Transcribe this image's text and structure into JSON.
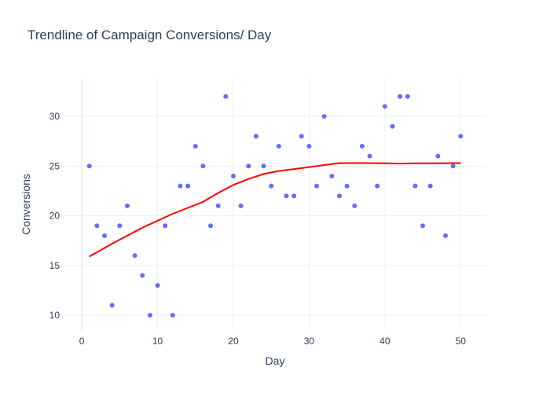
{
  "chart_data": {
    "type": "scatter",
    "title": "Trendline of Campaign Conversions/ Day",
    "xlabel": "Day",
    "ylabel": "Conversions",
    "xlim": [
      -2.5,
      53.5
    ],
    "ylim": [
      8.5,
      33.8
    ],
    "x_ticks": [
      0,
      10,
      20,
      30,
      40,
      50
    ],
    "y_ticks": [
      10,
      15,
      20,
      25,
      30
    ],
    "grid": true,
    "legend": "none",
    "colors": {
      "points": "#636efa",
      "trendline": "#ff0000",
      "grid": "#ebf0f8",
      "text": "#2a3f5f"
    },
    "series": [
      {
        "kind": "markers",
        "x": [
          1,
          2,
          3,
          4,
          5,
          6,
          7,
          8,
          9,
          10,
          11,
          12,
          13,
          14,
          15,
          16,
          17,
          18,
          19,
          20,
          21,
          22,
          23,
          24,
          25,
          26,
          27,
          28,
          29,
          30,
          31,
          32,
          33,
          34,
          35,
          36,
          37,
          38,
          39,
          40,
          41,
          42,
          43,
          44,
          45,
          46,
          47,
          48,
          49,
          50
        ],
        "y": [
          25,
          19,
          18,
          11,
          19,
          21,
          16,
          14,
          10,
          13,
          19,
          10,
          23,
          23,
          27,
          25,
          19,
          21,
          32,
          24,
          21,
          25,
          28,
          25,
          23,
          27,
          22,
          22,
          28,
          27,
          23,
          30,
          24,
          22,
          23,
          21,
          27,
          26,
          23,
          31,
          29,
          32,
          32,
          23,
          19,
          23,
          26,
          18,
          25,
          28
        ]
      },
      {
        "kind": "line",
        "x": [
          1,
          4,
          8,
          12,
          16,
          18,
          20,
          22,
          24,
          26,
          28,
          30,
          32,
          34,
          36,
          38,
          40,
          42,
          44,
          46,
          48,
          50
        ],
        "y": [
          15.9,
          17.2,
          18.8,
          20.2,
          21.4,
          22.3,
          23.1,
          23.7,
          24.2,
          24.5,
          24.7,
          24.9,
          25.1,
          25.3,
          25.3,
          25.3,
          25.28,
          25.25,
          25.28,
          25.28,
          25.29,
          25.3
        ]
      }
    ]
  }
}
